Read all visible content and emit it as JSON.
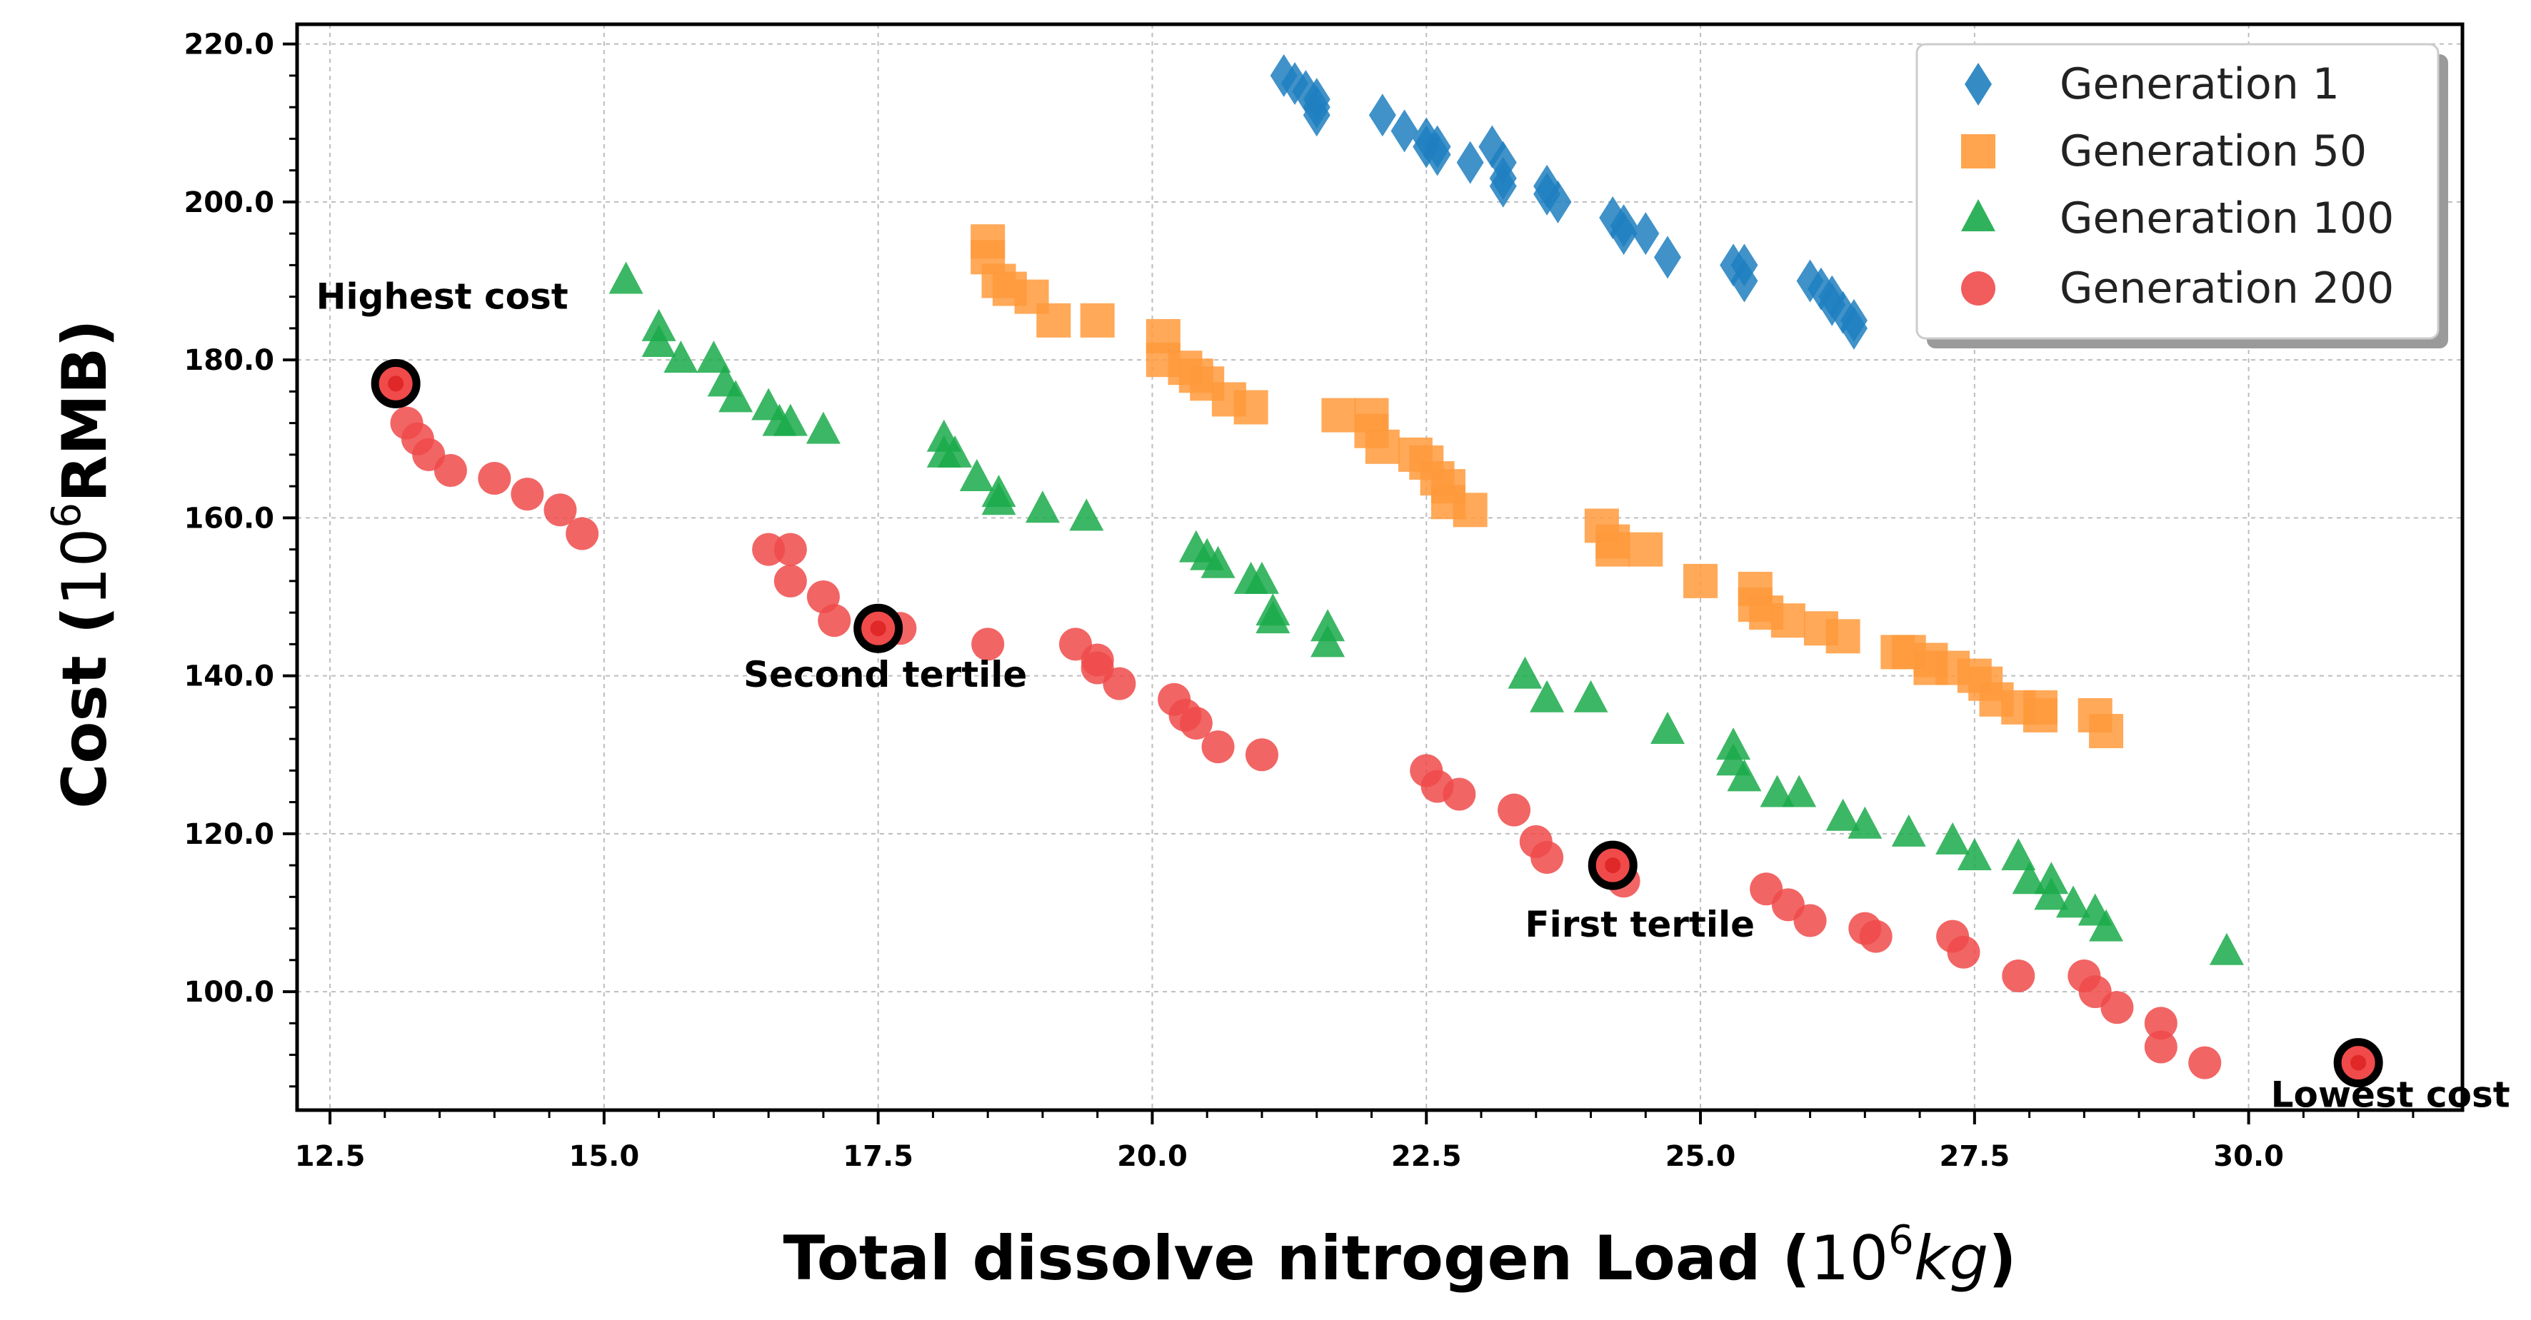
{
  "chart_data": {
    "type": "scatter",
    "title": "",
    "xlabel_main": "Total dissolve nitrogen Load (",
    "xlabel_unit_base": "10",
    "xlabel_unit_exp": "6",
    "xlabel_unit_tail": "kg",
    "xlabel_close": ")",
    "ylabel_main": "Cost (",
    "ylabel_unit_base": "10",
    "ylabel_unit_exp": "6",
    "ylabel_unit_tail": "RMB)",
    "xlim": [
      12.2,
      31.95
    ],
    "ylim": [
      85.0,
      222.5
    ],
    "xticks": [
      12.5,
      15.0,
      17.5,
      20.0,
      22.5,
      25.0,
      27.5,
      30.0
    ],
    "xtick_labels": [
      "12.5",
      "15.0",
      "17.5",
      "20.0",
      "22.5",
      "25.0",
      "27.5",
      "30.0"
    ],
    "yticks": [
      100,
      120,
      140,
      160,
      180,
      200,
      220
    ],
    "ytick_labels": [
      "100.0",
      "120.0",
      "140.0",
      "160.0",
      "180.0",
      "200.0",
      "220.0"
    ],
    "grid": true,
    "legend_position": "top-right",
    "series": [
      {
        "name": "Generation 1",
        "marker": "diamond",
        "color": "#1f7fbf",
        "points": [
          [
            21.2,
            216
          ],
          [
            21.3,
            215
          ],
          [
            21.4,
            214
          ],
          [
            21.5,
            213
          ],
          [
            21.5,
            212
          ],
          [
            21.5,
            211
          ],
          [
            22.1,
            211
          ],
          [
            22.3,
            209
          ],
          [
            22.5,
            208
          ],
          [
            22.5,
            207
          ],
          [
            22.6,
            207
          ],
          [
            22.6,
            206
          ],
          [
            22.9,
            205
          ],
          [
            23.1,
            207
          ],
          [
            23.2,
            205
          ],
          [
            23.2,
            203
          ],
          [
            23.2,
            202
          ],
          [
            23.6,
            202
          ],
          [
            23.6,
            201
          ],
          [
            23.7,
            200
          ],
          [
            24.2,
            198
          ],
          [
            24.3,
            197
          ],
          [
            24.3,
            196
          ],
          [
            24.5,
            196
          ],
          [
            24.7,
            193
          ],
          [
            25.3,
            192
          ],
          [
            25.4,
            192
          ],
          [
            25.4,
            190
          ],
          [
            26.0,
            190
          ],
          [
            26.1,
            189
          ],
          [
            26.2,
            188
          ],
          [
            26.2,
            187
          ],
          [
            26.3,
            186
          ],
          [
            26.4,
            185
          ],
          [
            26.4,
            184
          ]
        ]
      },
      {
        "name": "Generation 50",
        "marker": "square",
        "color": "#ff9a3c",
        "points": [
          [
            18.5,
            195
          ],
          [
            18.5,
            193
          ],
          [
            18.6,
            190
          ],
          [
            18.7,
            189
          ],
          [
            18.9,
            188
          ],
          [
            19.1,
            185
          ],
          [
            19.5,
            185
          ],
          [
            20.1,
            183
          ],
          [
            20.1,
            180
          ],
          [
            20.3,
            179
          ],
          [
            20.4,
            178
          ],
          [
            20.5,
            177
          ],
          [
            20.7,
            175
          ],
          [
            20.9,
            174
          ],
          [
            21.7,
            173
          ],
          [
            22.0,
            173
          ],
          [
            22.0,
            171
          ],
          [
            22.1,
            169
          ],
          [
            22.4,
            168
          ],
          [
            22.5,
            167
          ],
          [
            22.6,
            165
          ],
          [
            22.7,
            164
          ],
          [
            22.7,
            162
          ],
          [
            22.9,
            161
          ],
          [
            24.1,
            159
          ],
          [
            24.2,
            157
          ],
          [
            24.2,
            156
          ],
          [
            24.5,
            156
          ],
          [
            25.0,
            152
          ],
          [
            25.5,
            151
          ],
          [
            25.5,
            149
          ],
          [
            25.6,
            148
          ],
          [
            25.8,
            147
          ],
          [
            26.1,
            146
          ],
          [
            26.3,
            145
          ],
          [
            26.8,
            143
          ],
          [
            26.9,
            143
          ],
          [
            27.1,
            142
          ],
          [
            27.1,
            141
          ],
          [
            27.3,
            141
          ],
          [
            27.5,
            140
          ],
          [
            27.6,
            139
          ],
          [
            27.7,
            137
          ],
          [
            27.9,
            136
          ],
          [
            28.1,
            136
          ],
          [
            28.1,
            135
          ],
          [
            28.6,
            135
          ],
          [
            28.7,
            133
          ]
        ]
      },
      {
        "name": "Generation 100",
        "marker": "triangle",
        "color": "#1aaa4a",
        "points": [
          [
            15.2,
            190
          ],
          [
            15.5,
            184
          ],
          [
            15.5,
            182
          ],
          [
            15.7,
            180
          ],
          [
            16.0,
            180
          ],
          [
            16.1,
            177
          ],
          [
            16.2,
            175
          ],
          [
            16.5,
            174
          ],
          [
            16.6,
            172
          ],
          [
            16.7,
            172
          ],
          [
            17.0,
            171
          ],
          [
            18.1,
            170
          ],
          [
            18.1,
            168
          ],
          [
            18.2,
            168
          ],
          [
            18.4,
            165
          ],
          [
            18.6,
            163
          ],
          [
            18.6,
            162
          ],
          [
            19.0,
            161
          ],
          [
            19.4,
            160
          ],
          [
            20.4,
            156
          ],
          [
            20.5,
            155
          ],
          [
            20.6,
            154
          ],
          [
            20.9,
            152
          ],
          [
            21.0,
            152
          ],
          [
            21.1,
            148
          ],
          [
            21.1,
            147
          ],
          [
            21.6,
            146
          ],
          [
            21.6,
            144
          ],
          [
            23.4,
            140
          ],
          [
            23.6,
            137
          ],
          [
            24.0,
            137
          ],
          [
            24.7,
            133
          ],
          [
            25.3,
            131
          ],
          [
            25.3,
            129
          ],
          [
            25.4,
            127
          ],
          [
            25.7,
            125
          ],
          [
            25.9,
            125
          ],
          [
            26.3,
            122
          ],
          [
            26.5,
            121
          ],
          [
            26.9,
            120
          ],
          [
            27.3,
            119
          ],
          [
            27.5,
            117
          ],
          [
            27.9,
            117
          ],
          [
            28.0,
            114
          ],
          [
            28.2,
            114
          ],
          [
            28.2,
            112
          ],
          [
            28.4,
            111
          ],
          [
            28.6,
            110
          ],
          [
            28.7,
            108
          ],
          [
            29.8,
            105
          ]
        ]
      },
      {
        "name": "Generation 200",
        "marker": "circle",
        "color": "#f04a4a",
        "points": [
          [
            13.1,
            177
          ],
          [
            13.2,
            172
          ],
          [
            13.3,
            170
          ],
          [
            13.4,
            168
          ],
          [
            13.6,
            166
          ],
          [
            14.0,
            165
          ],
          [
            14.3,
            163
          ],
          [
            14.6,
            161
          ],
          [
            14.8,
            158
          ],
          [
            16.5,
            156
          ],
          [
            16.7,
            156
          ],
          [
            16.7,
            152
          ],
          [
            17.0,
            150
          ],
          [
            17.1,
            147
          ],
          [
            17.5,
            146
          ],
          [
            17.7,
            146
          ],
          [
            18.5,
            144
          ],
          [
            19.3,
            144
          ],
          [
            19.5,
            142
          ],
          [
            19.5,
            141
          ],
          [
            19.7,
            139
          ],
          [
            20.2,
            137
          ],
          [
            20.3,
            135
          ],
          [
            20.4,
            134
          ],
          [
            20.6,
            131
          ],
          [
            21.0,
            130
          ],
          [
            22.5,
            128
          ],
          [
            22.6,
            126
          ],
          [
            22.8,
            125
          ],
          [
            23.3,
            123
          ],
          [
            23.5,
            119
          ],
          [
            23.6,
            117
          ],
          [
            24.2,
            116
          ],
          [
            24.3,
            114
          ],
          [
            25.6,
            113
          ],
          [
            25.8,
            111
          ],
          [
            26.0,
            109
          ],
          [
            26.5,
            108
          ],
          [
            26.6,
            107
          ],
          [
            27.3,
            107
          ],
          [
            27.4,
            105
          ],
          [
            27.9,
            102
          ],
          [
            28.5,
            102
          ],
          [
            28.6,
            100
          ],
          [
            28.8,
            98
          ],
          [
            29.2,
            96
          ],
          [
            29.2,
            93
          ],
          [
            29.6,
            91
          ],
          [
            31.0,
            91
          ]
        ]
      }
    ],
    "highlighted_points": [
      [
        13.1,
        177
      ],
      [
        17.5,
        146
      ],
      [
        24.2,
        116
      ],
      [
        31.0,
        91
      ]
    ],
    "annotations": [
      {
        "text": "Highest cost",
        "x": 13.1,
        "y": 177
      },
      {
        "text": "Second tertile",
        "x": 17.5,
        "y": 146
      },
      {
        "text": "First tertile",
        "x": 24.2,
        "y": 116
      },
      {
        "text": "Lowest cost",
        "x": 31.0,
        "y": 91
      }
    ]
  }
}
